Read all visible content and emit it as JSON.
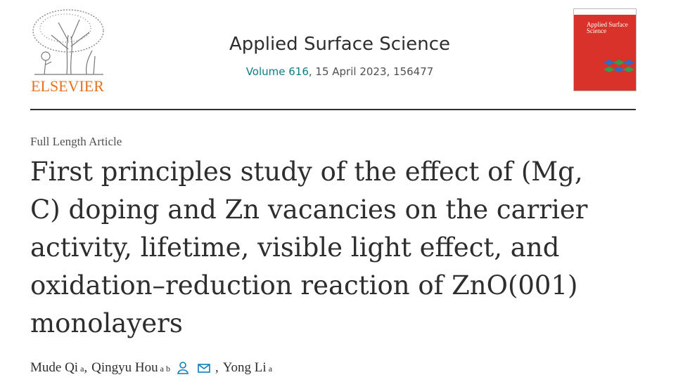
{
  "header": {
    "publisher": "ELSEVIER",
    "journal": "Applied Surface Science",
    "volume": "Volume 616",
    "issue_info": ", 15 April 2023, 156477",
    "cover_title": "Applied Surface Science"
  },
  "article": {
    "type": "Full Length Article",
    "title": "First principles study of the effect of (Mg, C) doping and Zn vacancies on the carrier activity, lifetime, visible light effect, and oxidation–reduction reaction of ZnO(001) monolayers"
  },
  "authors": {
    "separator": ",",
    "list": [
      {
        "name": "Mude Qi",
        "affiliations": "a"
      },
      {
        "name": "Qingyu Hou",
        "affiliations": "a b"
      },
      {
        "name": "Yong Li",
        "affiliations": "a"
      }
    ]
  }
}
